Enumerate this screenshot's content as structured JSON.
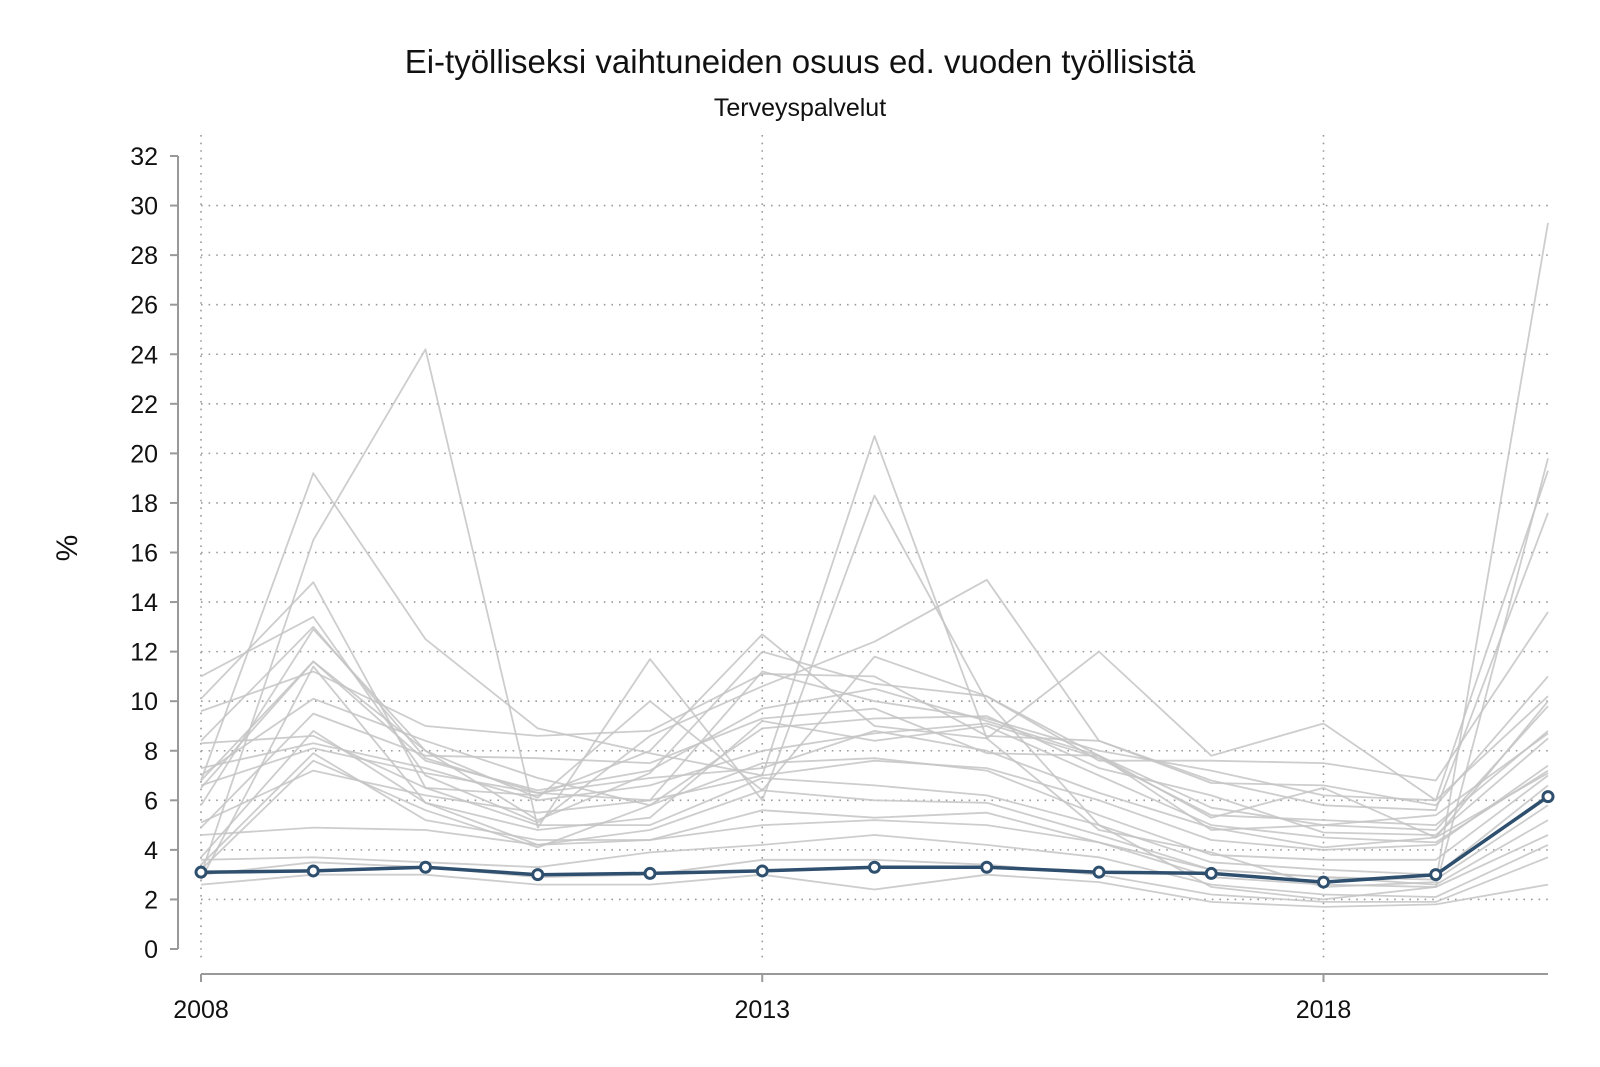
{
  "chart_data": {
    "type": "line",
    "title": "Ei-työlliseksi vaihtuneiden osuus ed. vuoden työllisistä",
    "subtitle": "Terveyspalvelut",
    "xlabel": "",
    "ylabel": "%",
    "xlim": [
      2008,
      2020
    ],
    "ylim": [
      0,
      32
    ],
    "x_ticks": [
      "2008",
      "2013",
      "2018"
    ],
    "y_ticks": [
      "0",
      "2",
      "4",
      "6",
      "8",
      "10",
      "12",
      "14",
      "16",
      "18",
      "20",
      "22",
      "24",
      "26",
      "28",
      "30",
      "32"
    ],
    "grid": true,
    "legend": "none",
    "x": [
      2008,
      2009,
      2010,
      2011,
      2012,
      2013,
      2014,
      2015,
      2016,
      2017,
      2018,
      2019,
      2020
    ],
    "highlight_color": "#2e4f6e",
    "background_series_color": "#c4c4c4",
    "series": [
      {
        "highlight": true,
        "values": [
          3.1,
          3.15,
          3.3,
          3.0,
          3.05,
          3.15,
          3.3,
          3.3,
          3.1,
          3.05,
          2.7,
          3.0,
          6.15
        ]
      },
      {
        "values": [
          6.8,
          19.2,
          12.5,
          8.9,
          7.9,
          7.0,
          20.7,
          8.5,
          4.8,
          3.9,
          2.5,
          2.7,
          29.3
        ]
      },
      {
        "values": [
          3.0,
          16.5,
          24.2,
          4.9,
          11.7,
          6.0,
          18.3,
          10.0,
          5.0,
          2.5,
          2.0,
          2.5,
          19.8
        ]
      },
      {
        "values": [
          10.1,
          14.8,
          6.5,
          6.2,
          8.0,
          12.7,
          9.0,
          8.5,
          12.0,
          7.8,
          9.1,
          6.0,
          19.3
        ]
      },
      {
        "values": [
          11.0,
          13.4,
          7.0,
          5.1,
          8.6,
          10.6,
          12.4,
          14.9,
          8.4,
          6.8,
          5.8,
          5.6,
          17.6
        ]
      },
      {
        "values": [
          6.8,
          11.6,
          8.0,
          6.1,
          10.0,
          6.4,
          11.8,
          10.2,
          7.6,
          7.6,
          7.5,
          6.8,
          13.6
        ]
      },
      {
        "values": [
          9.6,
          11.2,
          9.0,
          8.6,
          8.8,
          11.1,
          11.0,
          8.6,
          8.4,
          6.7,
          6.6,
          5.8,
          11.0
        ]
      },
      {
        "values": [
          8.4,
          13.0,
          7.7,
          6.3,
          6.0,
          11.2,
          10.0,
          9.3,
          8.0,
          7.2,
          6.2,
          6.0,
          10.2
        ]
      },
      {
        "values": [
          5.8,
          12.9,
          8.0,
          5.2,
          7.1,
          12.0,
          10.7,
          10.2,
          7.8,
          5.3,
          6.5,
          4.5,
          10.0
        ]
      },
      {
        "values": [
          4.9,
          9.5,
          7.8,
          7.7,
          7.5,
          9.3,
          9.7,
          7.9,
          7.8,
          4.8,
          5.0,
          5.4,
          8.7
        ]
      },
      {
        "values": [
          7.0,
          10.1,
          8.4,
          6.9,
          5.8,
          8.9,
          9.3,
          9.4,
          7.3,
          6.2,
          4.7,
          4.6,
          8.5
        ]
      },
      {
        "values": [
          3.7,
          8.8,
          5.9,
          4.8,
          5.3,
          9.2,
          8.4,
          9.0,
          7.0,
          5.0,
          4.5,
          4.3,
          7.2
        ]
      },
      {
        "values": [
          6.6,
          8.1,
          7.1,
          6.3,
          6.9,
          7.3,
          8.8,
          8.0,
          6.3,
          4.9,
          4.1,
          4.5,
          7.1
        ]
      },
      {
        "values": [
          3.2,
          7.6,
          5.6,
          4.1,
          5.8,
          7.5,
          7.7,
          7.2,
          5.4,
          3.8,
          3.6,
          3.6,
          7.0
        ]
      },
      {
        "values": [
          8.3,
          8.6,
          6.5,
          5.0,
          5.0,
          6.9,
          6.6,
          6.2,
          5.0,
          3.5,
          3.2,
          3.0,
          6.6
        ]
      },
      {
        "values": [
          2.8,
          11.4,
          5.9,
          4.2,
          4.8,
          6.4,
          6.0,
          5.9,
          4.6,
          3.2,
          2.9,
          2.8,
          5.8
        ]
      },
      {
        "values": [
          3.4,
          7.9,
          5.2,
          4.4,
          4.4,
          5.6,
          5.3,
          5.5,
          4.3,
          3.2,
          2.9,
          2.6,
          5.2
        ]
      },
      {
        "values": [
          4.6,
          4.9,
          4.8,
          4.2,
          4.4,
          5.0,
          5.2,
          5.0,
          4.3,
          2.9,
          2.6,
          2.5,
          4.6
        ]
      },
      {
        "values": [
          3.6,
          3.7,
          3.5,
          3.3,
          3.9,
          4.2,
          4.6,
          4.2,
          3.7,
          2.6,
          2.2,
          2.1,
          4.2
        ]
      },
      {
        "values": [
          3.0,
          3.5,
          3.3,
          2.9,
          3.0,
          3.6,
          3.6,
          3.4,
          3.0,
          2.2,
          1.9,
          1.9,
          3.7
        ]
      },
      {
        "values": [
          2.6,
          3.0,
          3.0,
          2.6,
          2.6,
          3.0,
          2.4,
          3.0,
          2.7,
          1.9,
          1.7,
          1.8,
          2.6
        ]
      },
      {
        "values": [
          7.3,
          8.3,
          7.3,
          6.0,
          6.6,
          8.0,
          8.7,
          9.1,
          7.7,
          5.4,
          5.2,
          5.0,
          8.8
        ]
      },
      {
        "values": [
          6.5,
          11.6,
          7.6,
          6.4,
          7.2,
          9.7,
          10.5,
          9.2,
          7.8,
          5.7,
          5.0,
          4.8,
          9.8
        ]
      },
      {
        "values": [
          5.1,
          7.2,
          6.2,
          5.5,
          6.0,
          7.0,
          7.6,
          7.3,
          6.0,
          4.4,
          4.0,
          4.2,
          7.4
        ]
      }
    ]
  }
}
